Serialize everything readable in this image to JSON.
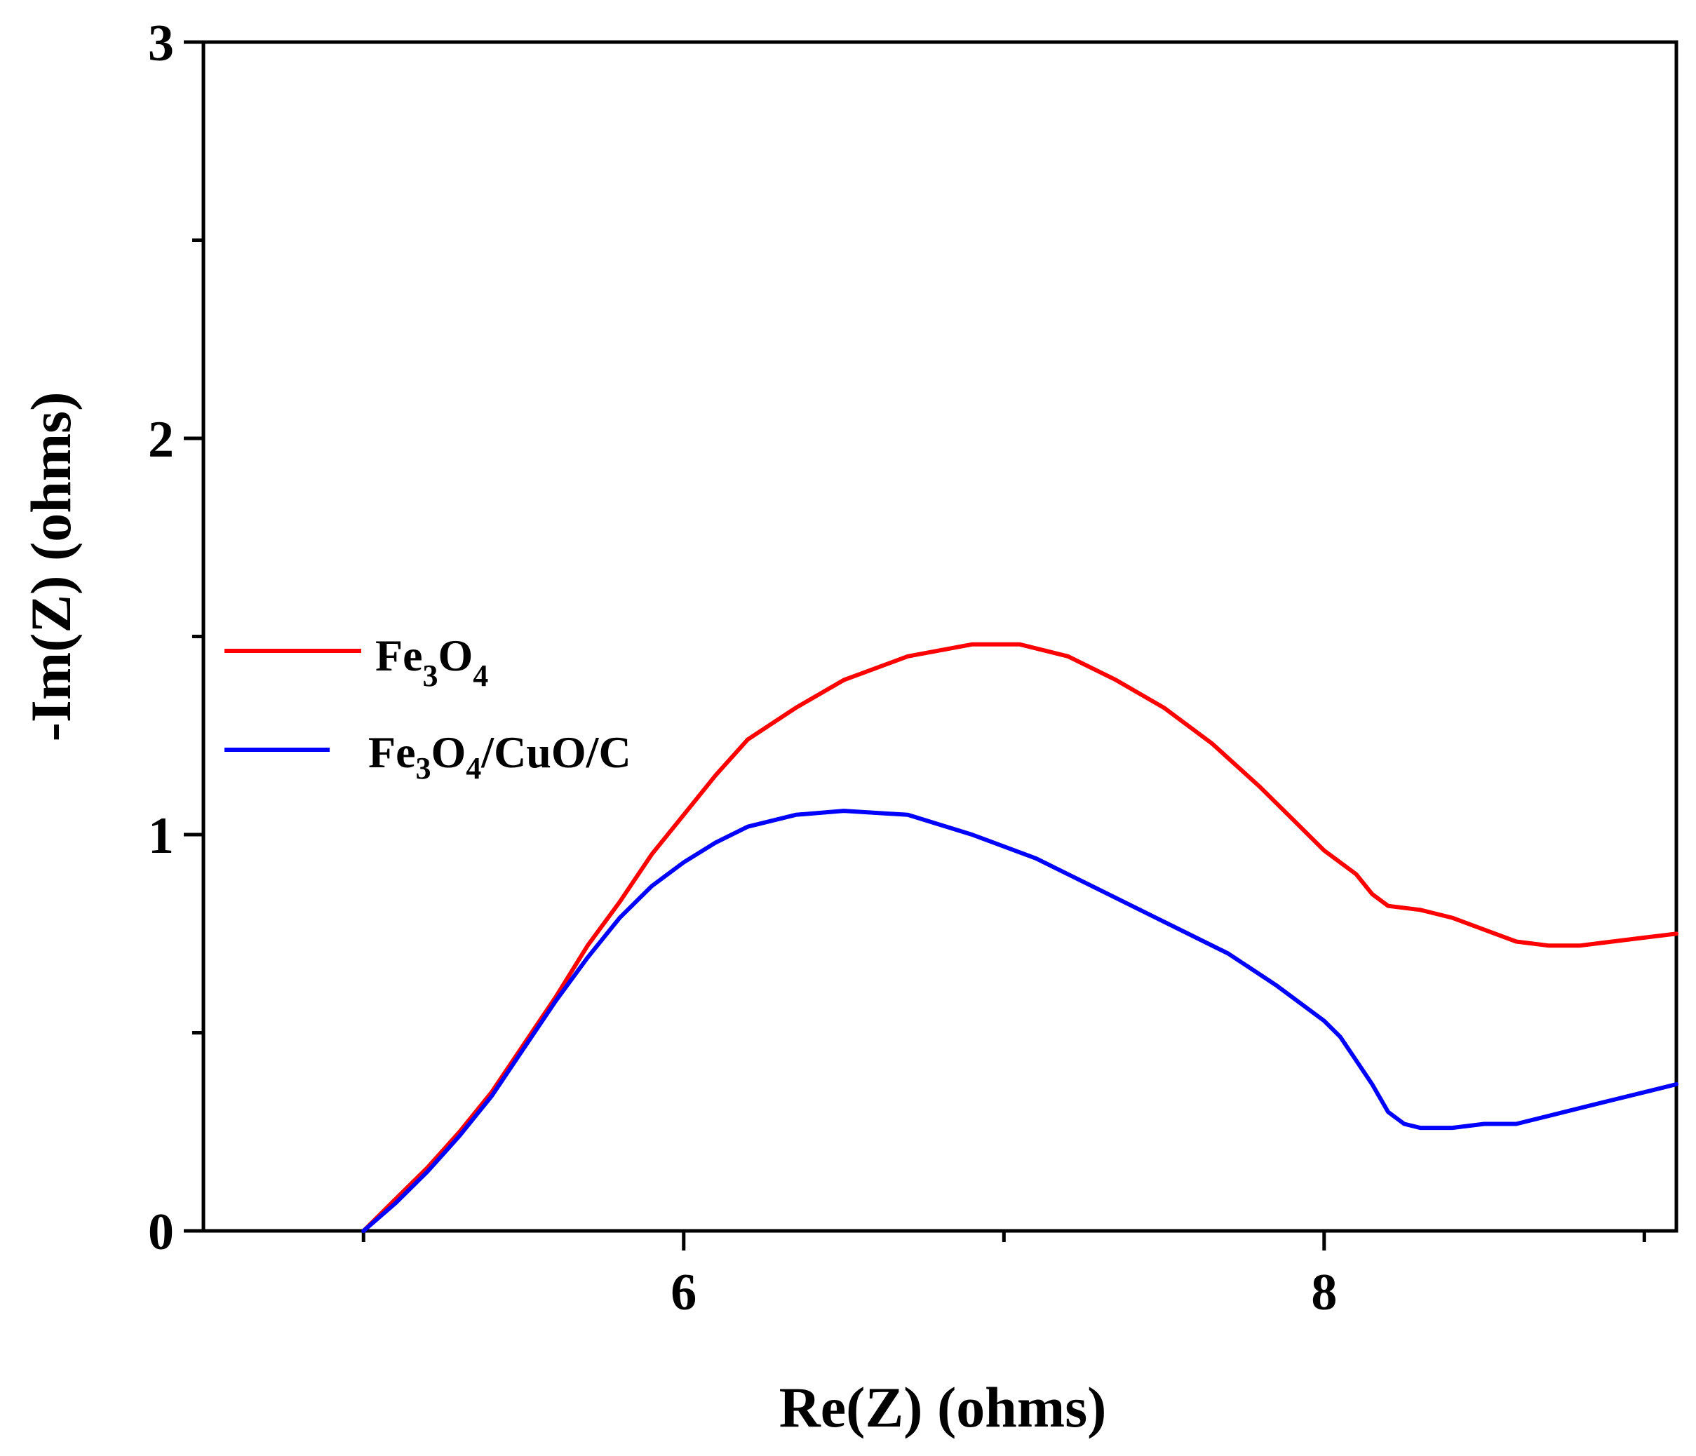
{
  "chart_data": {
    "type": "line",
    "title": "",
    "xlabel": "Re(Z) (ohms)",
    "ylabel": "-Im(Z) (ohms)",
    "xlim": [
      4.5,
      9.1
    ],
    "ylim": [
      0,
      3
    ],
    "xticks": [
      6,
      8
    ],
    "xtick_labels": [
      "6",
      "8"
    ],
    "yticks": [
      0,
      1,
      2,
      3
    ],
    "ytick_labels": [
      "0",
      "1",
      "2",
      "3"
    ],
    "minor_xticks": [
      5,
      7,
      9
    ],
    "minor_yticks": [
      0.5,
      1.5,
      2.5
    ],
    "grid": false,
    "legend_position": "left-center",
    "series": [
      {
        "name": "Fe3O4",
        "label_parts": {
          "a": "Fe",
          "s1": "3",
          "b": "O",
          "s2": "4",
          "c": ""
        },
        "color": "#ff0000",
        "points": [
          [
            5.0,
            0.0
          ],
          [
            5.1,
            0.08
          ],
          [
            5.2,
            0.16
          ],
          [
            5.3,
            0.25
          ],
          [
            5.4,
            0.35
          ],
          [
            5.5,
            0.47
          ],
          [
            5.6,
            0.59
          ],
          [
            5.7,
            0.72
          ],
          [
            5.8,
            0.83
          ],
          [
            5.9,
            0.95
          ],
          [
            6.0,
            1.05
          ],
          [
            6.1,
            1.15
          ],
          [
            6.2,
            1.24
          ],
          [
            6.35,
            1.32
          ],
          [
            6.5,
            1.39
          ],
          [
            6.7,
            1.45
          ],
          [
            6.9,
            1.48
          ],
          [
            7.05,
            1.48
          ],
          [
            7.2,
            1.45
          ],
          [
            7.35,
            1.39
          ],
          [
            7.5,
            1.32
          ],
          [
            7.65,
            1.23
          ],
          [
            7.8,
            1.12
          ],
          [
            7.9,
            1.04
          ],
          [
            8.0,
            0.96
          ],
          [
            8.1,
            0.9
          ],
          [
            8.15,
            0.85
          ],
          [
            8.2,
            0.82
          ],
          [
            8.3,
            0.81
          ],
          [
            8.4,
            0.79
          ],
          [
            8.5,
            0.76
          ],
          [
            8.6,
            0.73
          ],
          [
            8.7,
            0.72
          ],
          [
            8.8,
            0.72
          ],
          [
            8.9,
            0.73
          ],
          [
            9.0,
            0.74
          ],
          [
            9.1,
            0.75
          ]
        ]
      },
      {
        "name": "Fe3O4/CuO/C",
        "label_parts": {
          "a": "Fe",
          "s1": "3",
          "b": "O",
          "s2": "4",
          "c": "/CuO/C"
        },
        "color": "#0000ff",
        "points": [
          [
            5.0,
            0.0
          ],
          [
            5.1,
            0.07
          ],
          [
            5.2,
            0.15
          ],
          [
            5.3,
            0.24
          ],
          [
            5.4,
            0.34
          ],
          [
            5.5,
            0.46
          ],
          [
            5.6,
            0.58
          ],
          [
            5.7,
            0.69
          ],
          [
            5.8,
            0.79
          ],
          [
            5.9,
            0.87
          ],
          [
            6.0,
            0.93
          ],
          [
            6.1,
            0.98
          ],
          [
            6.2,
            1.02
          ],
          [
            6.35,
            1.05
          ],
          [
            6.5,
            1.06
          ],
          [
            6.7,
            1.05
          ],
          [
            6.9,
            1.0
          ],
          [
            7.1,
            0.94
          ],
          [
            7.3,
            0.86
          ],
          [
            7.5,
            0.78
          ],
          [
            7.7,
            0.7
          ],
          [
            7.85,
            0.62
          ],
          [
            8.0,
            0.53
          ],
          [
            8.05,
            0.49
          ],
          [
            8.1,
            0.43
          ],
          [
            8.15,
            0.37
          ],
          [
            8.2,
            0.3
          ],
          [
            8.25,
            0.27
          ],
          [
            8.3,
            0.26
          ],
          [
            8.4,
            0.26
          ],
          [
            8.5,
            0.27
          ],
          [
            8.6,
            0.27
          ],
          [
            8.7,
            0.29
          ],
          [
            8.8,
            0.31
          ],
          [
            8.9,
            0.33
          ],
          [
            9.0,
            0.35
          ],
          [
            9.1,
            0.37
          ]
        ]
      }
    ]
  }
}
